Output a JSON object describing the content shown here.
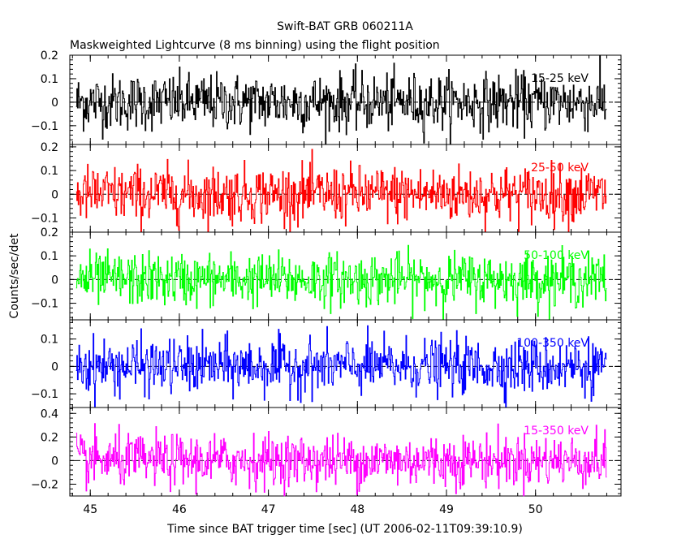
{
  "title": "Swift-BAT GRB 060211A",
  "subtitle": "Maskweighted Lightcurve (8 ms binning) using the flight position",
  "ylabel": "Counts/sec/det",
  "xlabel": "Time since BAT trigger time [sec] (UT 2006-02-11T09:39:10.9)",
  "chart_data": {
    "type": "line",
    "x_range": [
      44.77,
      50.96
    ],
    "x_ticks": [
      45,
      46,
      47,
      48,
      49,
      50
    ],
    "x_tick_labels": [
      "45",
      "46",
      "47",
      "48",
      "49",
      "50"
    ],
    "data_x_range": [
      44.84,
      50.8
    ],
    "bin_width_s": 0.008,
    "grid": false,
    "panels": [
      {
        "name": "15-25 keV",
        "color": "#000000",
        "ylim": [
          -0.18,
          0.2
        ],
        "y_ticks": [
          -0.1,
          0,
          0.1,
          0.2
        ],
        "y_tick_labels": [
          "−0.1",
          "0",
          "0.1",
          "0.2"
        ],
        "noise_sigma": 0.06
      },
      {
        "name": "25-50 keV",
        "color": "#ff0000",
        "ylim": [
          -0.16,
          0.21
        ],
        "y_ticks": [
          -0.1,
          0,
          0.1,
          0.2
        ],
        "y_tick_labels": [
          "−0.1",
          "0",
          "0.1",
          "0.2"
        ],
        "noise_sigma": 0.06
      },
      {
        "name": "50-100 keV",
        "color": "#00ff00",
        "ylim": [
          -0.17,
          0.2
        ],
        "y_ticks": [
          -0.1,
          0,
          0.1,
          0.2
        ],
        "y_tick_labels": [
          "−0.1",
          "0",
          "0.1",
          "0.2"
        ],
        "noise_sigma": 0.055
      },
      {
        "name": "100-350 keV",
        "color": "#0000ff",
        "ylim": [
          -0.15,
          0.17
        ],
        "y_ticks": [
          -0.1,
          0,
          0.1
        ],
        "y_tick_labels": [
          "−0.1",
          "0",
          "0.1"
        ],
        "noise_sigma": 0.05
      },
      {
        "name": "15-350 keV",
        "color": "#ff00ff",
        "ylim": [
          -0.3,
          0.45
        ],
        "y_ticks": [
          -0.2,
          0,
          0.2,
          0.4
        ],
        "y_tick_labels": [
          "−0.2",
          "0",
          "0.2",
          "0.4"
        ],
        "noise_sigma": 0.11
      }
    ]
  }
}
